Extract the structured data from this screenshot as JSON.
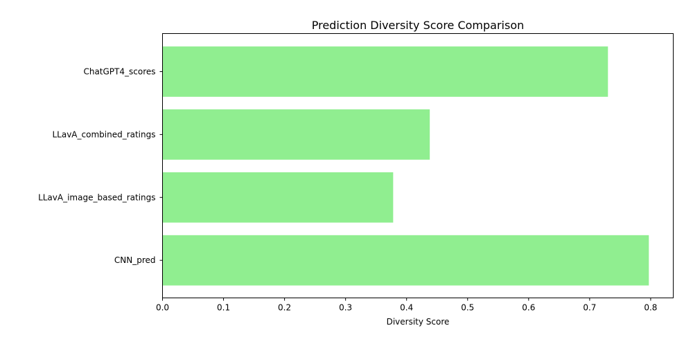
{
  "chart_data": {
    "type": "bar",
    "orientation": "horizontal",
    "title": "Prediction Diversity Score Comparison",
    "xlabel": "Diversity Score",
    "ylabel": "",
    "categories": [
      "ChatGPT4_scores",
      "LLavA_combined_ratings",
      "LLavA_image_based_ratings",
      "CNN_pred"
    ],
    "values": [
      0.73,
      0.438,
      0.378,
      0.797
    ],
    "xlim": [
      0,
      0.837
    ],
    "xticks": [
      "0.0",
      "0.1",
      "0.2",
      "0.3",
      "0.4",
      "0.5",
      "0.6",
      "0.7",
      "0.8"
    ],
    "bar_color": "#90ee90",
    "grid": false,
    "legend": "none"
  }
}
